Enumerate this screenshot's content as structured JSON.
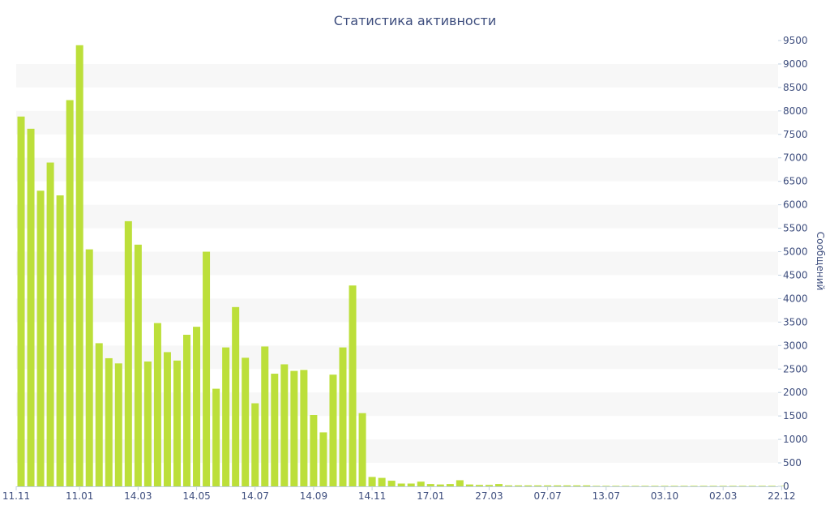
{
  "chart_data": {
    "type": "bar",
    "title": "Статистика активности",
    "xlabel": "",
    "ylabel": "Сообщений",
    "ylim": [
      0,
      9500
    ],
    "yticks": [
      0,
      500,
      1000,
      1500,
      2000,
      2500,
      3000,
      3500,
      4000,
      4500,
      5000,
      5500,
      6000,
      6500,
      7000,
      7500,
      8000,
      8500,
      9000,
      9500
    ],
    "x_tick_labels": [
      {
        "label": "11.11",
        "index": 0
      },
      {
        "label": "11.01",
        "index": 6
      },
      {
        "label": "14.03",
        "index": 12
      },
      {
        "label": "14.05",
        "index": 18
      },
      {
        "label": "14.07",
        "index": 24
      },
      {
        "label": "14.09",
        "index": 30
      },
      {
        "label": "14.11",
        "index": 36
      },
      {
        "label": "17.01",
        "index": 42
      },
      {
        "label": "27.03",
        "index": 48
      },
      {
        "label": "07.07",
        "index": 54
      },
      {
        "label": "13.07",
        "index": 60
      },
      {
        "label": "03.10",
        "index": 66
      },
      {
        "label": "02.03",
        "index": 72
      },
      {
        "label": "22.12",
        "index": 78
      }
    ],
    "grid": true,
    "bar_color": "#bcdf3a",
    "band_color": "#f7f7f7",
    "text_color": "#3e4e7e",
    "values": [
      7880,
      7620,
      6300,
      6900,
      6200,
      8230,
      9400,
      5050,
      3050,
      2730,
      2620,
      5650,
      5150,
      2660,
      3480,
      2860,
      2680,
      3230,
      3400,
      5000,
      2080,
      2960,
      3820,
      2740,
      1770,
      2980,
      2400,
      2600,
      2460,
      2480,
      1520,
      1150,
      2380,
      2960,
      4280,
      1560,
      200,
      180,
      120,
      60,
      60,
      100,
      50,
      40,
      50,
      130,
      40,
      30,
      30,
      50,
      20,
      20,
      20,
      20,
      20,
      20,
      20,
      20,
      20,
      10,
      10,
      10,
      10,
      10,
      10,
      10,
      10,
      10,
      10,
      10,
      10,
      10,
      10,
      10,
      10,
      10,
      10,
      10,
      10
    ]
  }
}
